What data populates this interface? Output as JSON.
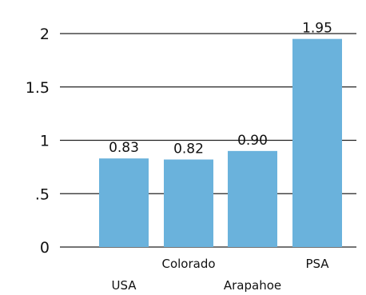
{
  "chart_data": {
    "type": "bar",
    "categories": [
      "USA",
      "Colorado",
      "Arapahoe",
      "PSA"
    ],
    "values": [
      0.83,
      0.82,
      0.9,
      1.95
    ],
    "data_labels": [
      "0.83",
      "0.82",
      "0.90",
      "1.95"
    ],
    "ylim": [
      0,
      2
    ],
    "yticks": [
      0,
      0.5,
      1,
      1.5,
      2
    ],
    "ytick_labels": [
      "0",
      ".5",
      "1",
      "1.5",
      "2"
    ],
    "grid": true,
    "bar_color": "#6AB2DC",
    "title": "",
    "xlabel": "",
    "ylabel": ""
  }
}
